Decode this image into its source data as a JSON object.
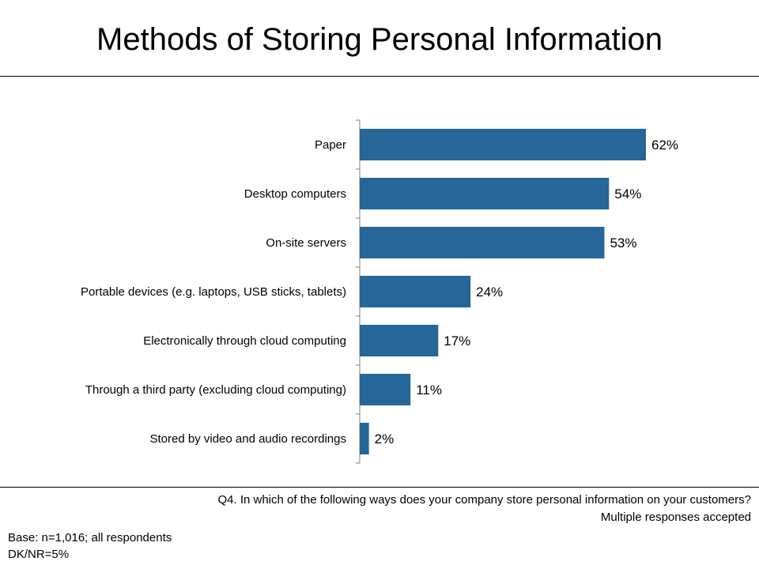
{
  "slide": {
    "title": "Methods of Storing Personal Information",
    "question": "Q4. In which of the following ways does your company store personal information on your customers?",
    "note": "Multiple responses accepted",
    "base": "Base: n=1,016; all respondents",
    "dknr": "DK/NR=5%"
  },
  "colors": {
    "bar": "#266699",
    "axis": "#7f7f7f"
  },
  "chart_data": {
    "type": "bar",
    "orientation": "horizontal",
    "categories": [
      "Paper",
      "Desktop computers",
      "On-site servers",
      "Portable devices (e.g. laptops, USB sticks, tablets)",
      "Electronically through cloud computing",
      "Through a third party (excluding cloud computing)",
      "Stored by video and audio recordings"
    ],
    "values": [
      62,
      54,
      53,
      24,
      17,
      11,
      2
    ],
    "value_labels": [
      "62%",
      "54%",
      "53%",
      "24%",
      "17%",
      "11%",
      "2%"
    ],
    "unit": "%",
    "xlim": [
      0,
      62
    ],
    "grid": false,
    "legend": "none"
  }
}
